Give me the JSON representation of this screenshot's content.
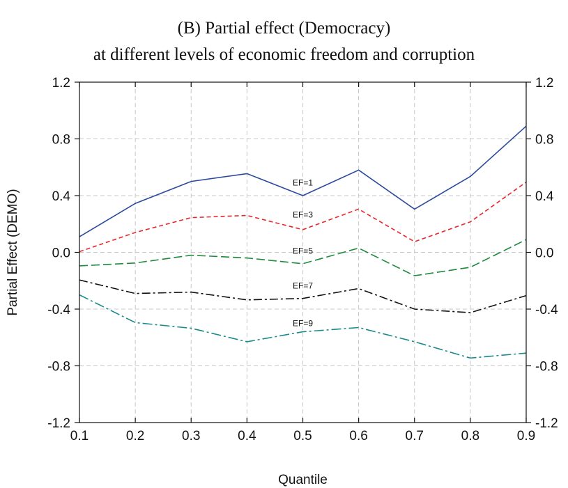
{
  "chart_data": {
    "type": "line",
    "title": "(B) Partial effect (Democracy)",
    "subtitle": "at different levels of economic freedom and corruption",
    "xlabel": "Quantile",
    "ylabel": "Partial Effect (DEMO)",
    "xlim": [
      0.1,
      0.9
    ],
    "ylim": [
      -1.2,
      1.2
    ],
    "x": [
      0.1,
      0.2,
      0.3,
      0.4,
      0.5,
      0.6,
      0.7,
      0.8,
      0.9
    ],
    "x_tick_labels": [
      "0.1",
      "0.2",
      "0.3",
      "0.4",
      "0.5",
      "0.6",
      "0.7",
      "0.8",
      "0.9"
    ],
    "y_ticks": [
      1.2,
      0.8,
      0.4,
      0.0,
      -0.4,
      -0.8,
      -1.2
    ],
    "y_tick_labels": [
      "1.2",
      "0.8",
      "0.4",
      "0.0",
      "-0.4",
      "-0.8",
      "-1.2"
    ],
    "grid": true,
    "series": [
      {
        "name": "EF=1",
        "color": "#2b4a9c",
        "dash": "solid",
        "label_x": 0.5,
        "label_y": 0.47,
        "values": [
          0.11,
          0.345,
          0.5,
          0.555,
          0.4,
          0.58,
          0.305,
          0.535,
          0.89
        ]
      },
      {
        "name": "EF=3",
        "color": "#e8262b",
        "dash": "short-dash",
        "label_x": 0.5,
        "label_y": 0.245,
        "values": [
          0.005,
          0.14,
          0.245,
          0.26,
          0.16,
          0.305,
          0.075,
          0.215,
          0.495
        ]
      },
      {
        "name": "EF=5",
        "color": "#1e8a3c",
        "dash": "long-dash",
        "label_x": 0.5,
        "label_y": -0.01,
        "values": [
          -0.095,
          -0.075,
          -0.02,
          -0.04,
          -0.08,
          0.03,
          -0.165,
          -0.105,
          0.09
        ]
      },
      {
        "name": "EF=7",
        "color": "#111111",
        "dash": "dash-dot",
        "label_x": 0.5,
        "label_y": -0.255,
        "values": [
          -0.195,
          -0.29,
          -0.28,
          -0.335,
          -0.325,
          -0.255,
          -0.4,
          -0.425,
          -0.305
        ]
      },
      {
        "name": "EF=9",
        "color": "#1b8a8a",
        "dash": "dash-dot-long",
        "label_x": 0.5,
        "label_y": -0.52,
        "values": [
          -0.3,
          -0.495,
          -0.535,
          -0.63,
          -0.56,
          -0.53,
          -0.63,
          -0.745,
          -0.71
        ]
      }
    ]
  }
}
